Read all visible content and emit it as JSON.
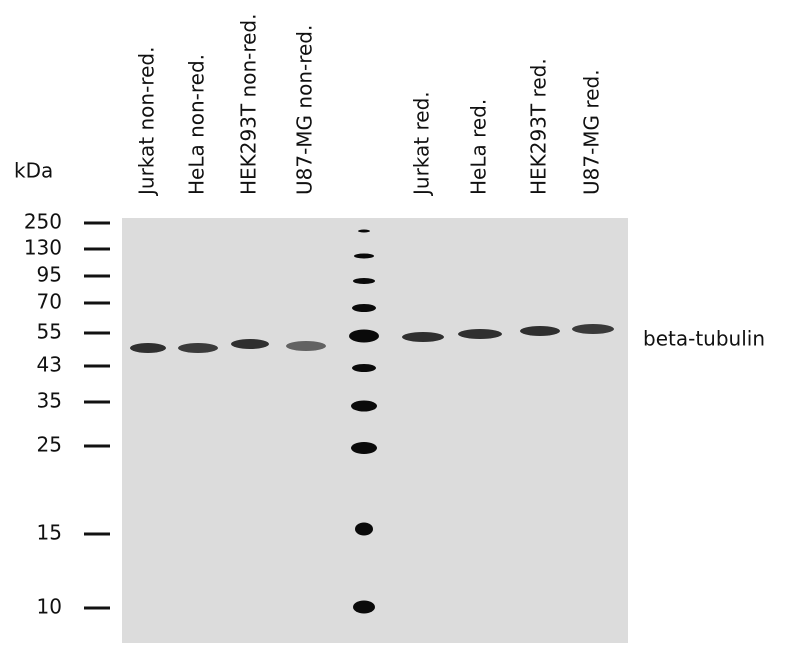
{
  "kda_label": "kDa",
  "markers": [
    "250",
    "130",
    "95",
    "70",
    "55",
    "43",
    "35",
    "25",
    "15",
    "10"
  ],
  "lanes": [
    "Jurkat non-red.",
    "HeLa non-red.",
    "HEK293T non-red.",
    "U87-MG non-red.",
    "Jurkat red.",
    "HeLa red.",
    "HEK293T red.",
    "U87-MG red."
  ],
  "band_label": "beta-tubulin"
}
